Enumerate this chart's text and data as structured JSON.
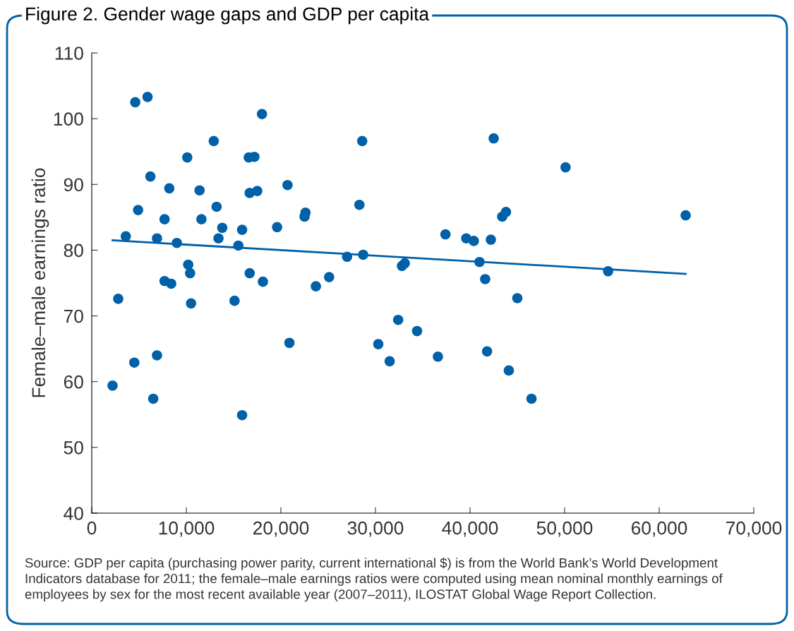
{
  "chart_data": {
    "type": "scatter",
    "title": "Figure 2. Gender wage gaps and GDP per capita",
    "ylabel": "Female–male earnings ratio",
    "xlim": [
      0,
      70000
    ],
    "xticks": [
      {
        "value": 0,
        "label": "0"
      },
      {
        "value": 10000,
        "label": "10,000"
      },
      {
        "value": 20000,
        "label": "20,000"
      },
      {
        "value": 30000,
        "label": "30,000"
      },
      {
        "value": 40000,
        "label": "40,000"
      },
      {
        "value": 50000,
        "label": "50,000"
      },
      {
        "value": 60000,
        "label": "60,000"
      },
      {
        "value": 70000,
        "label": "70,000"
      }
    ],
    "ylim": [
      40,
      110
    ],
    "yticks": [
      40,
      50,
      60,
      70,
      80,
      90,
      100,
      110
    ],
    "grid": false,
    "legend": false,
    "series": [
      {
        "marker": "circle",
        "color": "#0061a8",
        "x": [
          2200,
          2800,
          3600,
          4500,
          4600,
          4900,
          5900,
          6200,
          6500,
          6900,
          6900,
          7700,
          7700,
          8200,
          8400,
          9000,
          10100,
          10200,
          10400,
          10500,
          11400,
          11600,
          12900,
          13200,
          13400,
          13800,
          15100,
          15500,
          15900,
          15900,
          16600,
          16700,
          16700,
          17200,
          17500,
          18000,
          18100,
          19600,
          20700,
          20900,
          22500,
          22600,
          23700,
          25100,
          27000,
          28300,
          28600,
          28700,
          30300,
          31500,
          32400,
          32800,
          33100,
          34400,
          36600,
          37400,
          39600,
          40400,
          41000,
          41600,
          41800,
          42200,
          42500,
          43400,
          43800,
          44100,
          45000,
          46500,
          50100,
          54600,
          62800
        ],
        "values": [
          59.4,
          72.6,
          82.1,
          62.9,
          102.5,
          86.1,
          103.3,
          91.2,
          57.4,
          64.0,
          81.8,
          84.7,
          75.3,
          89.4,
          74.9,
          81.1,
          94.1,
          77.8,
          76.5,
          71.9,
          89.1,
          84.7,
          96.6,
          86.6,
          81.8,
          83.4,
          72.3,
          80.7,
          83.1,
          54.9,
          94.1,
          76.5,
          88.7,
          94.2,
          89.0,
          100.7,
          75.2,
          83.5,
          89.9,
          65.9,
          85.1,
          85.7,
          74.5,
          75.9,
          79.0,
          86.9,
          96.6,
          79.3,
          65.7,
          63.1,
          69.4,
          77.6,
          78.0,
          67.7,
          63.8,
          82.4,
          81.8,
          81.4,
          78.2,
          75.6,
          64.6,
          81.6,
          97.0,
          85.1,
          85.8,
          61.7,
          72.7,
          57.4,
          92.6,
          76.8,
          85.3
        ]
      },
      {
        "type": "line",
        "color": "#0061a8",
        "marker": "none",
        "line_style": "solid",
        "x": [
          2200,
          62800
        ],
        "values": [
          81.5,
          76.4
        ]
      }
    ],
    "annotations": [
      "Source: GDP per capita (purchasing power parity, current international $) is from the World Bank’s World Development Indicators database for 2011; the female–male earnings ratios were computed using mean nominal monthly earnings of employees by sex for the most recent available year (2007–2011), ILOSTAT Global Wage Report Collection."
    ]
  }
}
